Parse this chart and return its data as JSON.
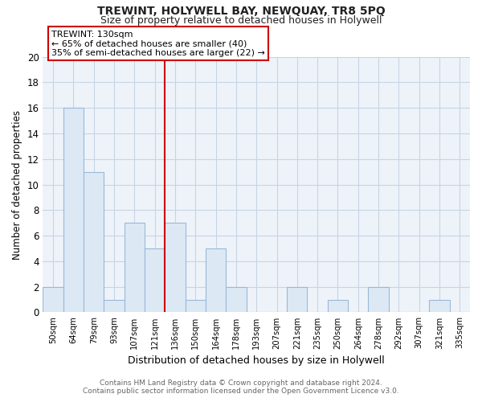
{
  "title": "TREWINT, HOLYWELL BAY, NEWQUAY, TR8 5PQ",
  "subtitle": "Size of property relative to detached houses in Holywell",
  "xlabel": "Distribution of detached houses by size in Holywell",
  "ylabel": "Number of detached properties",
  "categories": [
    "50sqm",
    "64sqm",
    "79sqm",
    "93sqm",
    "107sqm",
    "121sqm",
    "136sqm",
    "150sqm",
    "164sqm",
    "178sqm",
    "193sqm",
    "207sqm",
    "221sqm",
    "235sqm",
    "250sqm",
    "264sqm",
    "278sqm",
    "292sqm",
    "307sqm",
    "321sqm",
    "335sqm"
  ],
  "values": [
    2,
    16,
    11,
    1,
    7,
    5,
    7,
    1,
    5,
    2,
    0,
    0,
    2,
    0,
    1,
    0,
    2,
    0,
    0,
    1,
    0
  ],
  "bar_color": "#dce9f5",
  "bar_edge_color": "#9ab8d8",
  "trewint_line_index": 6,
  "trewint_line_color": "#cc0000",
  "annotation_text": "TREWINT: 130sqm\n← 65% of detached houses are smaller (40)\n35% of semi-detached houses are larger (22) →",
  "annotation_box_color": "#ffffff",
  "annotation_box_edge": "#cc0000",
  "ylim": [
    0,
    20
  ],
  "yticks": [
    0,
    2,
    4,
    6,
    8,
    10,
    12,
    14,
    16,
    18,
    20
  ],
  "footer_line1": "Contains HM Land Registry data © Crown copyright and database right 2024.",
  "footer_line2": "Contains public sector information licensed under the Open Government Licence v3.0.",
  "background_color": "#ffffff",
  "plot_bg_color": "#eef3f9",
  "grid_color": "#c8d4e4"
}
